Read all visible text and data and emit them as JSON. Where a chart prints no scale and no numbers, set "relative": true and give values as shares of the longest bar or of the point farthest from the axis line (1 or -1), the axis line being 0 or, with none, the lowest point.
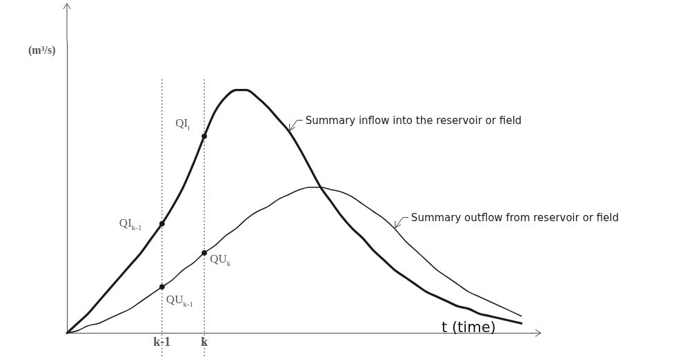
{
  "chart_data": {
    "type": "line",
    "relative": true,
    "xlabel": "t (time)",
    "ylabel": "(m³/s)",
    "categories": [
      null,
      null,
      null,
      null,
      null,
      null,
      null,
      null,
      null,
      "k-1",
      null,
      null,
      null,
      "k",
      null,
      null,
      null,
      null,
      null,
      null,
      null,
      null,
      null,
      null,
      null,
      null,
      null,
      null,
      null,
      null,
      null,
      null,
      null,
      null,
      null,
      null,
      null,
      null,
      null,
      null,
      null,
      null,
      null,
      null,
      null
    ],
    "ref_lines": [
      {
        "axis": "x",
        "value": "k-1",
        "line_style": "dotted",
        "color": "#333333"
      },
      {
        "axis": "x",
        "value": "k",
        "line_style": "dotted",
        "color": "#333333"
      }
    ],
    "grid": false,
    "legend": false,
    "marker": "none",
    "line_style": "solid",
    "series": [
      {
        "name": "Summary inflow into the reservoir or field",
        "color": "#1a1a1a",
        "values": [
          0,
          0.04,
          0.08,
          0.13,
          0.18,
          0.23,
          0.28,
          0.33,
          0.39,
          0.45,
          0.52,
          0.6,
          0.7,
          0.81,
          0.91,
          0.97,
          1,
          1,
          0.97,
          0.93,
          0.88,
          0.83,
          0.76,
          0.68,
          0.6,
          0.54,
          0.48,
          0.43,
          0.39,
          0.34,
          0.3,
          0.26,
          0.23,
          0.2,
          0.17,
          0.15,
          0.13,
          0.11,
          0.1,
          0.08,
          0.07,
          0.06,
          0.05,
          0.04,
          null
        ]
      },
      {
        "name": "Summary outflow from reservoir or field",
        "color": "#1a1a1a",
        "values": [
          0,
          0.01,
          0.03,
          0.04,
          0.06,
          0.08,
          0.1,
          0.13,
          0.16,
          0.19,
          0.22,
          0.26,
          0.29,
          0.33,
          0.36,
          0.4,
          0.43,
          0.47,
          0.5,
          0.52,
          0.55,
          0.57,
          0.59,
          0.6,
          0.6,
          0.59,
          0.58,
          0.56,
          0.53,
          0.5,
          0.47,
          0.43,
          0.38,
          0.34,
          0.3,
          0.26,
          0.23,
          0.2,
          0.17,
          0.15,
          0.13,
          0.11,
          0.09,
          0.07,
          null
        ]
      },
      {
        "type": "scatter",
        "color": "#1a1a1a",
        "marker": "circle",
        "x": [
          "k-1",
          "k",
          "k-1",
          "k"
        ],
        "values": [
          0.45,
          0.81,
          0.19,
          0.33
        ]
      }
    ],
    "annotations": [
      {
        "text": "QI$_{k-1}$",
        "x": "k-1",
        "y": 0.45
      },
      {
        "text": "QI$_{i}$",
        "x": "k",
        "y": 0.81
      },
      {
        "text": "QU$_{k-1}$",
        "x": "k-1",
        "y": 0.19
      },
      {
        "text": "QU$_{k}$",
        "x": "k",
        "y": 0.33
      }
    ]
  }
}
